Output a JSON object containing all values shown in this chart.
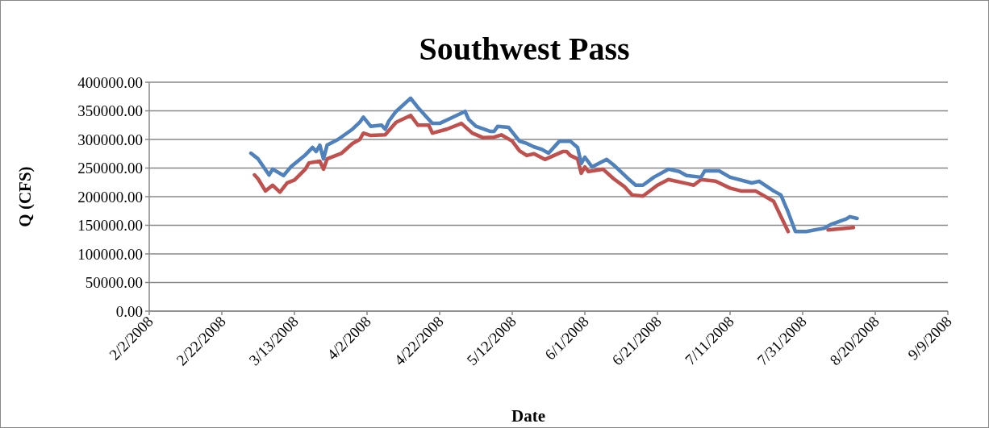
{
  "chart_data": {
    "type": "line",
    "title": "Southwest Pass",
    "xlabel": "Date",
    "ylabel": "Q (CFS)",
    "xlim": [
      "2008-02-02",
      "2008-09-09"
    ],
    "xticks": [
      {
        "value": "2008-02-02",
        "label": "2/2/2008"
      },
      {
        "value": "2008-02-22",
        "label": "2/22/2008"
      },
      {
        "value": "2008-03-13",
        "label": "3/13/2008"
      },
      {
        "value": "2008-04-02",
        "label": "4/2/2008"
      },
      {
        "value": "2008-04-22",
        "label": "4/22/2008"
      },
      {
        "value": "2008-05-12",
        "label": "5/12/2008"
      },
      {
        "value": "2008-06-01",
        "label": "6/1/2008"
      },
      {
        "value": "2008-06-21",
        "label": "6/21/2008"
      },
      {
        "value": "2008-07-11",
        "label": "7/11/2008"
      },
      {
        "value": "2008-07-31",
        "label": "7/31/2008"
      },
      {
        "value": "2008-08-20",
        "label": "8/20/2008"
      },
      {
        "value": "2008-09-09",
        "label": "9/9/2008"
      }
    ],
    "ylim": [
      0,
      400000
    ],
    "yticks": [
      {
        "value": 0,
        "label": "0.00"
      },
      {
        "value": 50000,
        "label": "50000.00"
      },
      {
        "value": 100000,
        "label": "100000.00"
      },
      {
        "value": 150000,
        "label": "150000.00"
      },
      {
        "value": 200000,
        "label": "200000.00"
      },
      {
        "value": 250000,
        "label": "250000.00"
      },
      {
        "value": 300000,
        "label": "300000.00"
      },
      {
        "value": 350000,
        "label": "350000.00"
      },
      {
        "value": 400000,
        "label": "400000.00"
      }
    ],
    "grid": "y",
    "marker": "none",
    "line_style": "solid",
    "series": [
      {
        "color": "#c0504d",
        "x": [
          "2008-03-02",
          "2008-03-03",
          "2008-03-05",
          "2008-03-07",
          "2008-03-09",
          "2008-03-11",
          "2008-03-13",
          "2008-03-16",
          "2008-03-17",
          "2008-03-20",
          "2008-03-21",
          "2008-03-22",
          "2008-03-26",
          "2008-03-29",
          "2008-03-31",
          "2008-04-01",
          "2008-04-03",
          "2008-04-07",
          "2008-04-10",
          "2008-04-14",
          "2008-04-16",
          "2008-04-19",
          "2008-04-20",
          "2008-04-24",
          "2008-04-28",
          "2008-05-01",
          "2008-05-04",
          "2008-05-07",
          "2008-05-09",
          "2008-05-12",
          "2008-05-14",
          "2008-05-16",
          "2008-05-18",
          "2008-05-21",
          "2008-05-26",
          "2008-05-27",
          "2008-05-28",
          "2008-05-30",
          "2008-05-31",
          "2008-06-01",
          "2008-06-02",
          "2008-06-06",
          "2008-06-09",
          "2008-06-12",
          "2008-06-14",
          "2008-06-17",
          "2008-06-21",
          "2008-06-24",
          "2008-06-29",
          "2008-07-01",
          "2008-07-03",
          "2008-07-07",
          "2008-07-11",
          "2008-07-14",
          "2008-07-18",
          "2008-07-23",
          "2008-07-27",
          "2008-07-29",
          "2008-08-07",
          "2008-08-14"
        ],
        "values": [
          238000,
          231000,
          210000,
          220000,
          208000,
          224000,
          229000,
          248000,
          259000,
          262000,
          248000,
          266000,
          276000,
          293000,
          300000,
          311000,
          307000,
          308000,
          330000,
          342000,
          325000,
          325000,
          311000,
          318000,
          328000,
          311000,
          303000,
          304000,
          308000,
          297000,
          280000,
          272000,
          275000,
          265000,
          279000,
          279000,
          272000,
          266000,
          241000,
          252000,
          244000,
          248000,
          231000,
          217000,
          203000,
          201000,
          220000,
          230000,
          223000,
          220000,
          230000,
          227000,
          215000,
          210000,
          210000,
          192000,
          139000,
          null,
          142000,
          146000
        ]
      },
      {
        "color": "#4f81bd",
        "x": [
          "2008-03-01",
          "2008-03-03",
          "2008-03-06",
          "2008-03-07",
          "2008-03-10",
          "2008-03-12",
          "2008-03-16",
          "2008-03-18",
          "2008-03-19",
          "2008-03-20",
          "2008-03-21",
          "2008-03-22",
          "2008-03-25",
          "2008-03-29",
          "2008-03-31",
          "2008-04-01",
          "2008-04-03",
          "2008-04-06",
          "2008-04-07",
          "2008-04-08",
          "2008-04-10",
          "2008-04-14",
          "2008-04-16",
          "2008-04-18",
          "2008-04-20",
          "2008-04-22",
          "2008-04-25",
          "2008-04-29",
          "2008-04-30",
          "2008-05-02",
          "2008-05-06",
          "2008-05-07",
          "2008-05-08",
          "2008-05-11",
          "2008-05-14",
          "2008-05-16",
          "2008-05-18",
          "2008-05-20",
          "2008-05-22",
          "2008-05-25",
          "2008-05-28",
          "2008-05-30",
          "2008-05-31",
          "2008-06-01",
          "2008-06-03",
          "2008-06-07",
          "2008-06-09",
          "2008-06-13",
          "2008-06-15",
          "2008-06-17",
          "2008-06-20",
          "2008-06-24",
          "2008-06-27",
          "2008-06-29",
          "2008-07-03",
          "2008-07-04",
          "2008-07-08",
          "2008-07-11",
          "2008-07-17",
          "2008-07-19",
          "2008-07-23",
          "2008-07-25",
          "2008-07-27",
          "2008-07-29",
          "2008-08-01",
          "2008-08-06",
          "2008-08-08",
          "2008-08-12",
          "2008-08-13",
          "2008-08-15"
        ],
        "values": [
          276000,
          266000,
          238000,
          248000,
          237000,
          252000,
          273000,
          286000,
          279000,
          290000,
          266000,
          290000,
          300000,
          318000,
          330000,
          339000,
          323000,
          325000,
          318000,
          332000,
          349000,
          372000,
          356000,
          342000,
          328000,
          328000,
          337000,
          349000,
          335000,
          323000,
          314000,
          314000,
          323000,
          321000,
          297000,
          293000,
          287000,
          283000,
          276000,
          297000,
          297000,
          286000,
          258000,
          269000,
          252000,
          265000,
          255000,
          231000,
          220000,
          220000,
          234000,
          248000,
          244000,
          237000,
          234000,
          245000,
          245000,
          234000,
          224000,
          227000,
          210000,
          203000,
          173000,
          139000,
          139000,
          145000,
          152000,
          161000,
          165000,
          162000
        ]
      }
    ]
  }
}
